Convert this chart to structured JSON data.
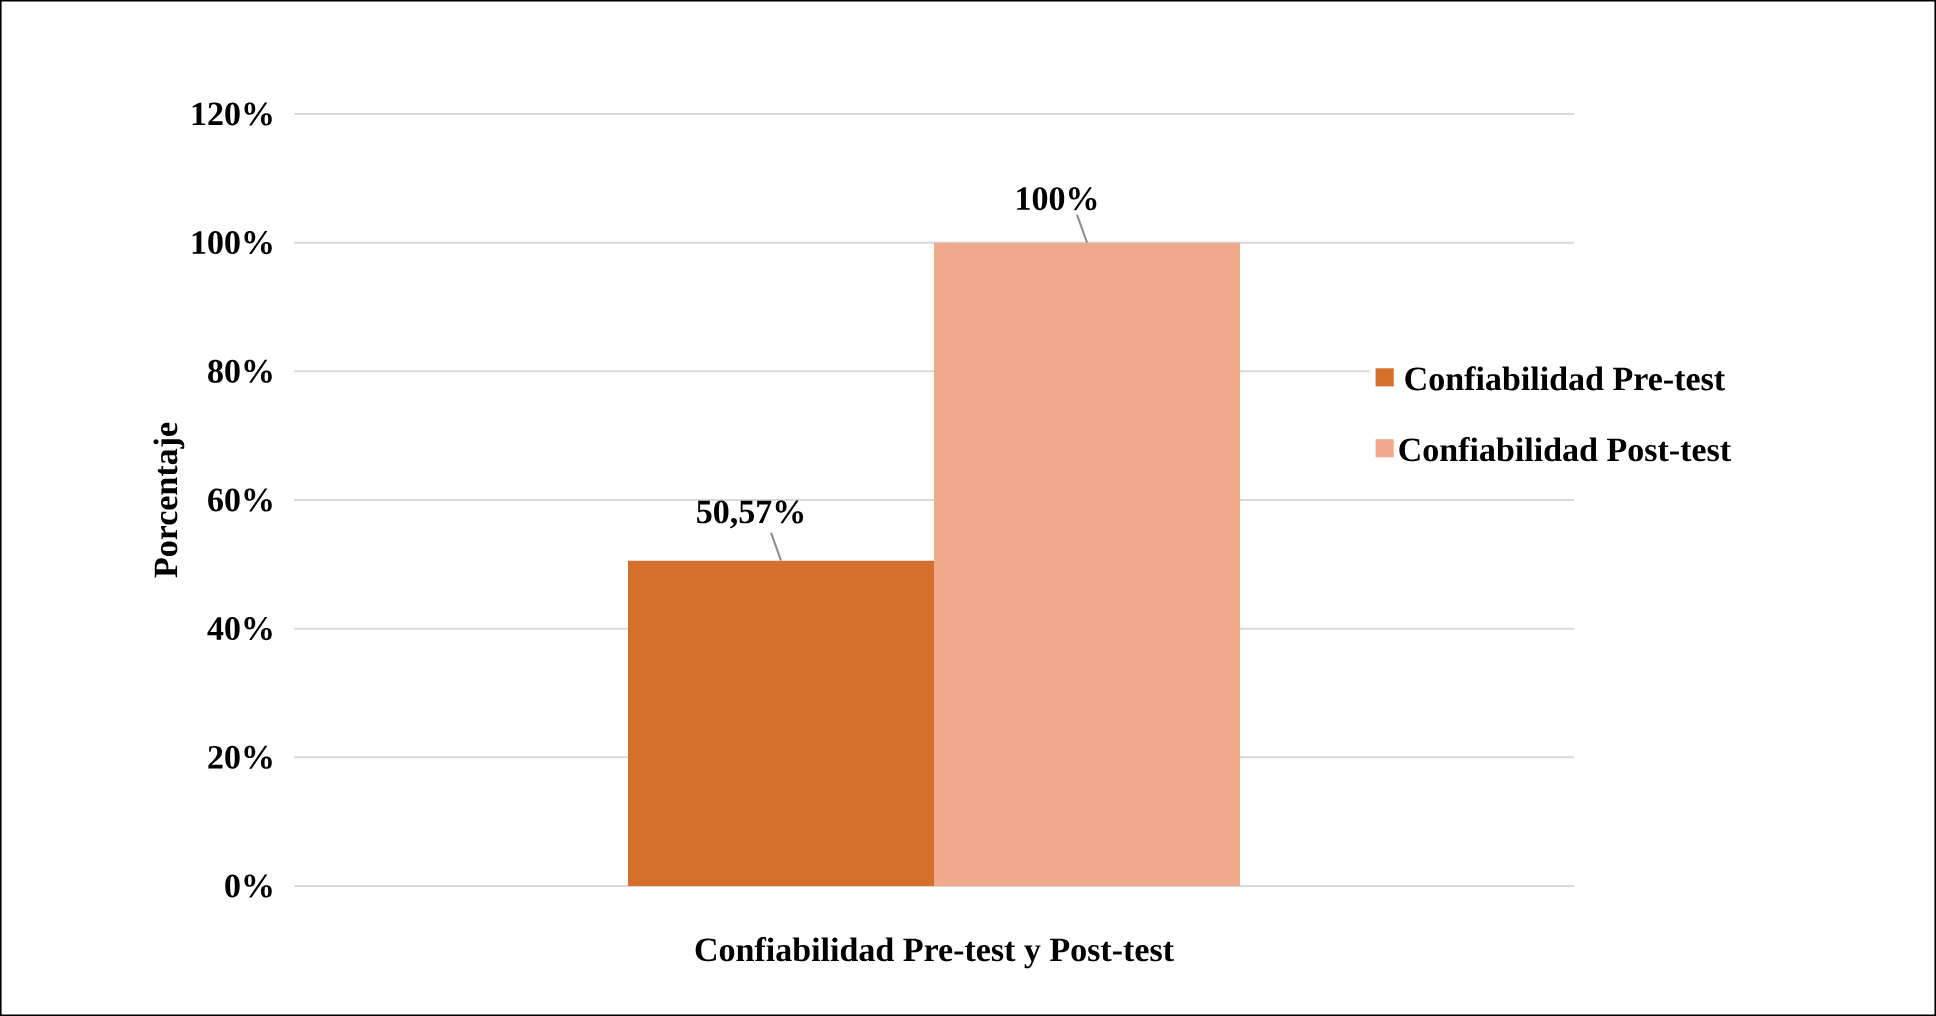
{
  "chart_data": {
    "type": "bar",
    "ylabel": "Porcentaje",
    "categories": [
      "Confiabilidad Pre-test y Post-test"
    ],
    "series": [
      {
        "name": "Confiabilidad Pre-test",
        "color": "#d4702b",
        "values": [
          50.57
        ],
        "value_labels": [
          "50,57%"
        ]
      },
      {
        "name": "Confiabilidad Post-test",
        "color": "#f0a98a",
        "values": [
          100
        ],
        "value_labels": [
          "100%"
        ]
      }
    ],
    "ylim": [
      0,
      120
    ],
    "yticks": [
      {
        "value": 0,
        "label": "0%"
      },
      {
        "value": 20,
        "label": "20%"
      },
      {
        "value": 40,
        "label": "40%"
      },
      {
        "value": 60,
        "label": "60%"
      },
      {
        "value": 80,
        "label": "80%"
      },
      {
        "value": 100,
        "label": "100%"
      },
      {
        "value": 120,
        "label": "120%"
      }
    ],
    "grid": "y",
    "legend": "right"
  }
}
